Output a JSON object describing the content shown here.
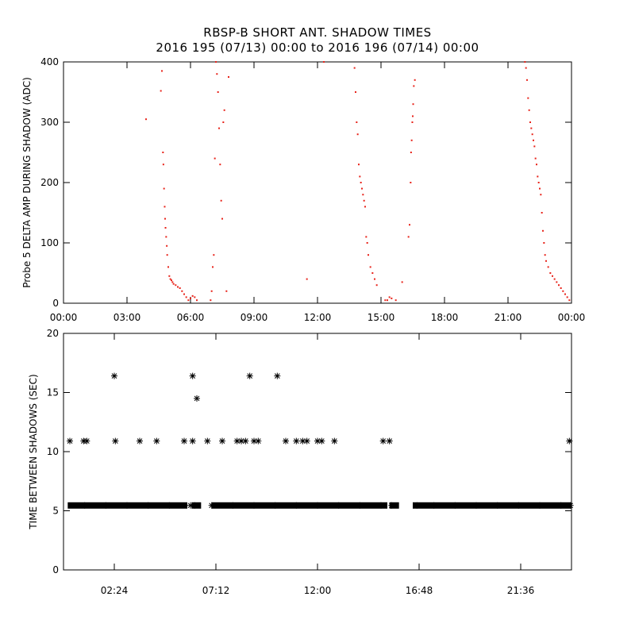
{
  "title_line1": "RBSP-B SHORT ANT. SHADOW TIMES",
  "title_line2": "2016 195 (07/13) 00:00 to 2016 196 (07/14) 00:00",
  "colors": {
    "top_points": "#e8231a",
    "bottom_points": "#000000",
    "axes": "#000000"
  },
  "chart_data": [
    {
      "type": "scatter",
      "ylabel": "Probe 5 DELTA AMP DURING SHADOW (ADC)",
      "x_unit": "hours",
      "xlim": [
        0,
        24
      ],
      "ylim": [
        0,
        400
      ],
      "x_ticks": [
        0,
        3,
        6,
        9,
        12,
        15,
        18,
        21,
        24
      ],
      "x_tick_labels": [
        "00:00",
        "03:00",
        "06:00",
        "09:00",
        "12:00",
        "15:00",
        "18:00",
        "21:00",
        "00:00"
      ],
      "y_ticks": [
        0,
        100,
        200,
        300,
        400
      ],
      "marker": "dot",
      "series": [
        {
          "x": [
            3.9,
            4.6,
            4.65,
            4.7,
            4.72,
            4.75,
            4.78,
            4.8,
            4.82,
            4.85,
            4.88,
            4.9,
            4.95,
            5.0,
            5.05,
            5.1,
            5.15,
            5.2,
            5.3,
            5.4,
            5.5,
            5.6,
            5.7,
            5.8,
            5.9,
            6.0,
            6.1,
            6.2,
            6.3,
            6.95,
            7.0,
            7.05,
            7.1,
            7.15,
            7.2,
            7.25,
            7.3,
            7.35,
            7.4,
            7.45,
            7.5,
            7.55,
            7.6,
            7.7,
            7.8,
            11.5,
            12.3,
            13.75,
            13.8,
            13.85,
            13.9,
            13.95,
            14.0,
            14.05,
            14.1,
            14.15,
            14.2,
            14.25,
            14.3,
            14.35,
            14.4,
            14.5,
            14.6,
            14.7,
            14.8,
            15.2,
            15.3,
            15.4,
            15.5,
            15.7,
            16.0,
            16.3,
            16.35,
            16.4,
            16.42,
            16.45,
            16.48,
            16.5,
            16.52,
            16.55,
            16.6,
            21.8,
            21.85,
            21.9,
            21.95,
            22.0,
            22.05,
            22.1,
            22.15,
            22.2,
            22.25,
            22.3,
            22.35,
            22.4,
            22.45,
            22.5,
            22.55,
            22.6,
            22.65,
            22.7,
            22.75,
            22.8,
            22.9,
            23.0,
            23.1,
            23.2,
            23.3,
            23.4,
            23.5,
            23.6,
            23.7,
            23.8,
            23.9
          ],
          "y": [
            305,
            352,
            385,
            250,
            230,
            190,
            160,
            140,
            125,
            110,
            95,
            80,
            60,
            45,
            40,
            38,
            35,
            32,
            30,
            27,
            25,
            20,
            15,
            10,
            5,
            8,
            12,
            10,
            5,
            5,
            20,
            60,
            80,
            240,
            400,
            380,
            350,
            290,
            230,
            170,
            140,
            300,
            320,
            20,
            375,
            40,
            400,
            390,
            350,
            300,
            280,
            230,
            210,
            200,
            190,
            180,
            170,
            160,
            110,
            100,
            80,
            60,
            50,
            40,
            30,
            5,
            5,
            10,
            8,
            5,
            35,
            110,
            130,
            200,
            250,
            270,
            300,
            310,
            330,
            360,
            370,
            400,
            390,
            370,
            340,
            320,
            300,
            290,
            280,
            270,
            260,
            240,
            230,
            210,
            200,
            190,
            180,
            150,
            120,
            100,
            80,
            70,
            60,
            50,
            45,
            40,
            35,
            30,
            25,
            20,
            15,
            10,
            5
          ]
        }
      ]
    },
    {
      "type": "scatter",
      "ylabel": "TIME BETWEEN SHADOWS (SEC)",
      "x_unit": "hours",
      "xlim": [
        0,
        24
      ],
      "ylim": [
        0,
        20
      ],
      "x_ticks": [
        2.4,
        7.2,
        12.0,
        16.8,
        21.6
      ],
      "x_tick_labels": [
        "02:24",
        "07:12",
        "12:00",
        "16:48",
        "21:36"
      ],
      "y_ticks": [
        0,
        5,
        10,
        15,
        20
      ],
      "marker": "asterisk",
      "series": [
        {
          "x": [
            0.3,
            0.95,
            1.1,
            2.4,
            2.45,
            3.6,
            4.4,
            5.7,
            6.1,
            6.1,
            6.3,
            6.8,
            7.5,
            8.2,
            8.4,
            8.6,
            8.8,
            9.0,
            9.2,
            10.1,
            10.5,
            11.0,
            11.3,
            11.5,
            12.0,
            12.2,
            12.8,
            15.1,
            15.4,
            23.9,
            1.0,
            2.0,
            3.0,
            4.0,
            5.0,
            6.0,
            6.2,
            7.0,
            8.0,
            9.0,
            10.0,
            11.0,
            12.0,
            13.0,
            14.0,
            15.0,
            15.5,
            16.7,
            17.5,
            18.5,
            19.5,
            20.5,
            21.5,
            22.5,
            23.5,
            23.95
          ],
          "y": [
            10.9,
            10.9,
            10.9,
            16.4,
            10.9,
            10.9,
            10.9,
            10.9,
            16.4,
            10.9,
            14.5,
            10.9,
            10.9,
            10.9,
            10.9,
            10.9,
            16.4,
            10.9,
            10.9,
            16.4,
            10.9,
            10.9,
            10.9,
            10.9,
            10.9,
            10.9,
            10.9,
            10.9,
            10.9,
            10.9,
            5.45,
            5.45,
            5.45,
            5.45,
            5.45,
            5.45,
            5.45,
            5.45,
            5.45,
            5.45,
            5.45,
            5.45,
            5.45,
            5.45,
            5.45,
            5.45,
            5.45,
            5.45,
            5.45,
            5.45,
            5.45,
            5.45,
            5.45,
            5.45,
            5.45,
            5.45
          ]
        }
      ]
    }
  ]
}
